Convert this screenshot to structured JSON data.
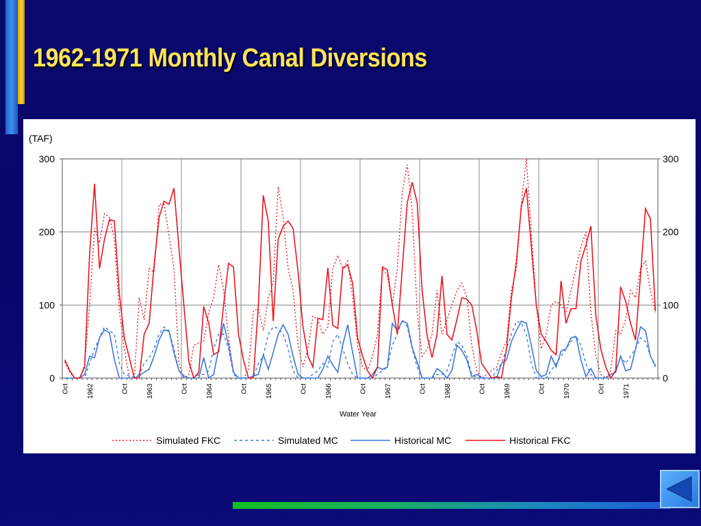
{
  "slide": {
    "title": "1962-1971 Monthly Canal Diversions"
  },
  "colors": {
    "background": "#06066a",
    "title": "#ffe45c",
    "fkc": "#e8141e",
    "mc": "#3c78d8",
    "footer_line": "#18b060"
  },
  "nav": {
    "back_button_icon": "back-arrow-icon"
  },
  "chart_data": {
    "type": "line",
    "unit_label": "(TAF)",
    "xlabel": "Water Year",
    "ylabel": "",
    "ylim": [
      0,
      300
    ],
    "y_ticks": [
      0,
      100,
      200,
      300
    ],
    "x_tick_labels": [
      "Oct",
      "1962",
      "Oct",
      "1963",
      "Oct",
      "1964",
      "Oct",
      "1965",
      "Oct",
      "1966",
      "Oct",
      "1967",
      "Oct",
      "1968",
      "Oct",
      "1969",
      "Oct",
      "1970",
      "Oct",
      "1971"
    ],
    "x_months": 120,
    "grid": true,
    "legend_position": "bottom",
    "series": [
      {
        "name": "Simulated FKC",
        "style": "dotted",
        "color": "#e8141e",
        "values": [
          22,
          8,
          0,
          0,
          18,
          100,
          205,
          185,
          225,
          220,
          190,
          90,
          40,
          0,
          0,
          110,
          80,
          150,
          145,
          238,
          238,
          195,
          150,
          20,
          0,
          5,
          45,
          48,
          50,
          90,
          110,
          155,
          120,
          55,
          8,
          0,
          0,
          10,
          92,
          95,
          65,
          110,
          130,
          262,
          220,
          150,
          120,
          45,
          15,
          40,
          85,
          80,
          60,
          70,
          150,
          168,
          150,
          160,
          110,
          45,
          15,
          10,
          30,
          60,
          150,
          140,
          100,
          150,
          255,
          292,
          230,
          90,
          30,
          40,
          60,
          120,
          60,
          80,
          100,
          120,
          130,
          110,
          45,
          10,
          0,
          5,
          10,
          15,
          35,
          50,
          120,
          150,
          240,
          300,
          200,
          100,
          40,
          60,
          100,
          105,
          100,
          90,
          120,
          150,
          180,
          200,
          90,
          30,
          5,
          0,
          10,
          65,
          60,
          80,
          120,
          110,
          150,
          160,
          120,
          90
        ]
      },
      {
        "name": "Simulated MC",
        "style": "dashed",
        "color": "#3c78d8",
        "values": [
          0,
          0,
          0,
          0,
          0,
          20,
          40,
          55,
          70,
          65,
          60,
          20,
          5,
          3,
          2,
          5,
          20,
          28,
          40,
          60,
          70,
          65,
          40,
          10,
          0,
          0,
          0,
          5,
          5,
          10,
          40,
          60,
          60,
          40,
          5,
          0,
          0,
          0,
          2,
          20,
          30,
          60,
          70,
          68,
          60,
          40,
          10,
          0,
          0,
          0,
          5,
          10,
          20,
          15,
          50,
          60,
          40,
          20,
          5,
          0,
          0,
          0,
          0,
          5,
          10,
          15,
          45,
          60,
          80,
          70,
          40,
          15,
          0,
          0,
          0,
          5,
          5,
          10,
          30,
          50,
          45,
          30,
          5,
          0,
          0,
          0,
          0,
          10,
          20,
          40,
          60,
          78,
          75,
          60,
          20,
          0,
          0,
          0,
          10,
          20,
          30,
          40,
          50,
          58,
          45,
          20,
          5,
          0,
          0,
          0,
          5,
          10,
          30,
          20,
          30,
          40,
          55,
          50,
          30,
          15
        ]
      },
      {
        "name": "Historical MC",
        "style": "solid",
        "color": "#3c78d8",
        "values": [
          0,
          0,
          0,
          0,
          5,
          30,
          28,
          55,
          66,
          62,
          25,
          0,
          0,
          0,
          0,
          3,
          8,
          12,
          30,
          52,
          66,
          64,
          35,
          10,
          3,
          0,
          0,
          0,
          28,
          0,
          5,
          40,
          75,
          45,
          8,
          0,
          0,
          0,
          3,
          5,
          32,
          12,
          35,
          60,
          73,
          60,
          30,
          5,
          0,
          0,
          0,
          0,
          12,
          30,
          18,
          8,
          45,
          73,
          35,
          0,
          0,
          0,
          5,
          15,
          12,
          15,
          75,
          65,
          78,
          75,
          42,
          22,
          0,
          0,
          0,
          13,
          8,
          0,
          10,
          45,
          38,
          25,
          2,
          5,
          0,
          0,
          0,
          0,
          20,
          25,
          50,
          65,
          78,
          75,
          45,
          10,
          2,
          5,
          30,
          15,
          37,
          40,
          55,
          57,
          25,
          2,
          13,
          0,
          0,
          0,
          5,
          8,
          30,
          10,
          12,
          40,
          70,
          65,
          30,
          17
        ]
      },
      {
        "name": "Historical FKC",
        "style": "solid",
        "color": "#e8141e",
        "values": [
          25,
          10,
          0,
          0,
          15,
          170,
          266,
          150,
          190,
          217,
          215,
          115,
          55,
          28,
          0,
          0,
          60,
          75,
          155,
          220,
          242,
          238,
          260,
          178,
          100,
          22,
          0,
          8,
          98,
          75,
          32,
          36,
          100,
          157,
          152,
          60,
          25,
          0,
          0,
          100,
          250,
          215,
          78,
          190,
          208,
          215,
          205,
          145,
          70,
          30,
          15,
          82,
          80,
          151,
          72,
          68,
          150,
          155,
          130,
          55,
          30,
          10,
          0,
          15,
          152,
          148,
          100,
          60,
          150,
          240,
          268,
          240,
          120,
          58,
          28,
          60,
          140,
          60,
          52,
          80,
          110,
          108,
          100,
          65,
          20,
          10,
          0,
          2,
          0,
          40,
          110,
          160,
          235,
          260,
          180,
          100,
          60,
          50,
          38,
          32,
          133,
          75,
          95,
          95,
          160,
          182,
          208,
          85,
          40,
          15,
          0,
          10,
          125,
          105,
          75,
          52,
          140,
          232,
          218,
          92
        ]
      }
    ]
  }
}
